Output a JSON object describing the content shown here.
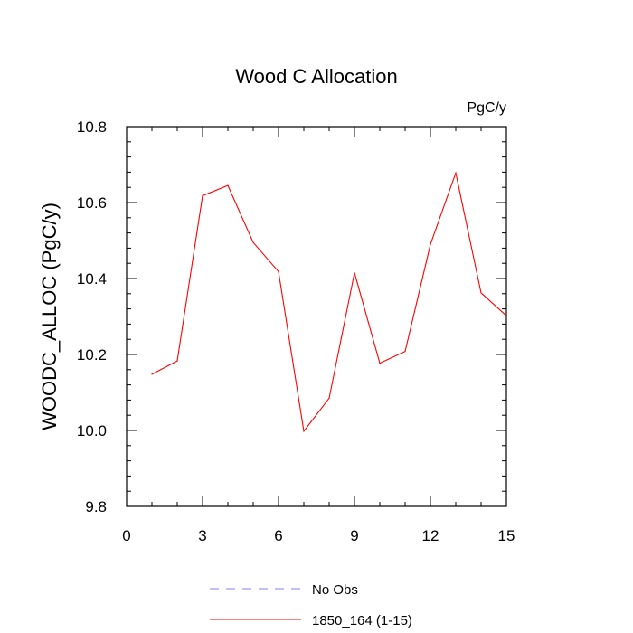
{
  "chart_data": {
    "type": "line",
    "title": "Wood C Allocation",
    "units_label": "PgC/y",
    "ylabel": "WOODC_ALLOC  (PgC/y)",
    "xlabel": "",
    "xlim": [
      0,
      15
    ],
    "ylim": [
      9.8,
      10.8
    ],
    "x_ticks": [
      0,
      3,
      6,
      9,
      12,
      15
    ],
    "x_tick_labels": [
      "0",
      "3",
      "6",
      "9",
      "12",
      "15"
    ],
    "y_ticks": [
      9.8,
      10.0,
      10.2,
      10.4,
      10.6,
      10.8
    ],
    "y_tick_labels": [
      "9.8",
      "10.0",
      "10.2",
      "10.4",
      "10.6",
      "10.8"
    ],
    "grid": false,
    "legend_position": "bottom",
    "series": [
      {
        "name": "1850_164 (1-15)",
        "color": "#ff0000",
        "style": "solid",
        "x": [
          1,
          2,
          3,
          4,
          5,
          6,
          7,
          8,
          9,
          10,
          11,
          12,
          13,
          14,
          15
        ],
        "values": [
          10.148,
          10.183,
          10.618,
          10.645,
          10.495,
          10.418,
          9.998,
          10.085,
          10.415,
          10.177,
          10.208,
          10.49,
          10.678,
          10.362,
          10.302
        ]
      }
    ],
    "legend": [
      {
        "label": "No Obs",
        "color": "#8080ff",
        "style": "dashed"
      },
      {
        "label": "1850_164 (1-15)",
        "color": "#ff0000",
        "style": "solid"
      }
    ]
  }
}
